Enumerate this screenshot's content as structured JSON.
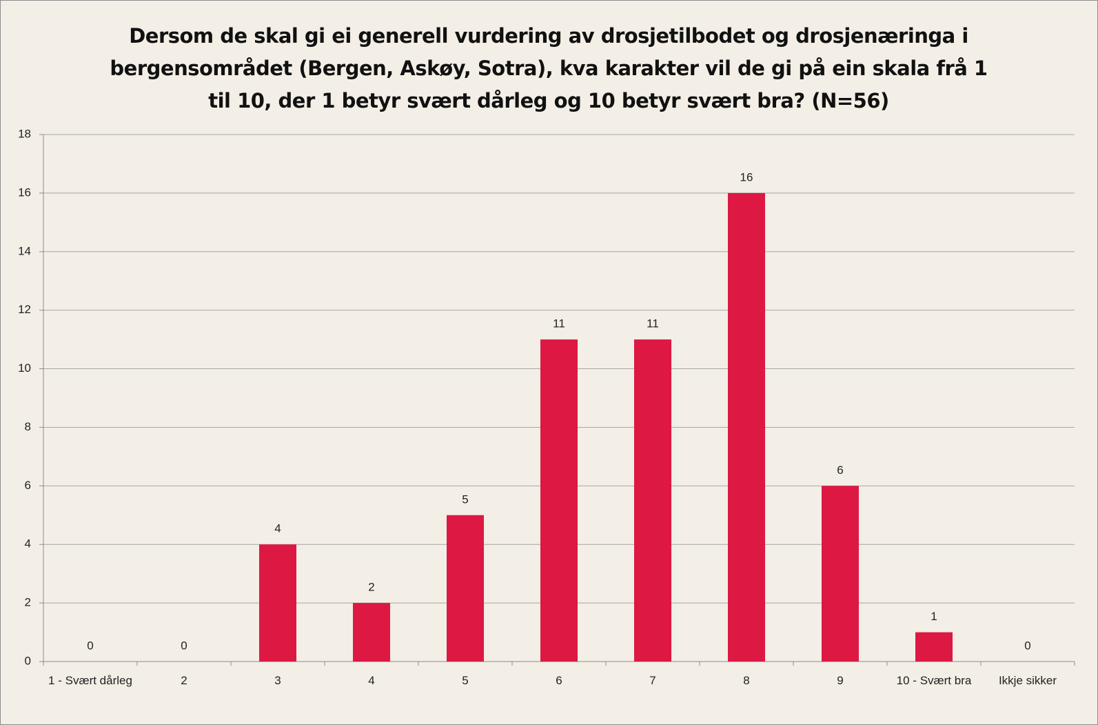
{
  "chart_data": {
    "type": "bar",
    "title": "Dersom de skal gi ei generell vurdering av drosjetilbodet og drosjenæringa i bergensområdet (Bergen, Askøy, Sotra), kva karakter vil de gi på ein skala frå 1 til 10, der 1 betyr svært dårleg og 10 betyr svært bra? (N=56)",
    "categories": [
      "1 - Svært dårleg",
      "2",
      "3",
      "4",
      "5",
      "6",
      "7",
      "8",
      "9",
      "10 - Svært bra",
      "Ikkje sikker"
    ],
    "values": [
      0,
      0,
      4,
      2,
      5,
      11,
      11,
      16,
      6,
      1,
      0
    ],
    "color": "#dc1843",
    "ylim": [
      0,
      18
    ],
    "yticks": [
      0,
      2,
      4,
      6,
      8,
      10,
      12,
      14,
      16,
      18
    ],
    "grid": true
  }
}
